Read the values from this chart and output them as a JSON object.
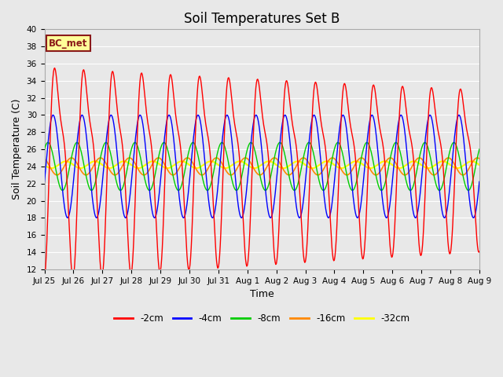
{
  "title": "Soil Temperatures Set B",
  "xlabel": "Time",
  "ylabel": "Soil Temperature (C)",
  "ylim": [
    12,
    40
  ],
  "yticks": [
    12,
    14,
    16,
    18,
    20,
    22,
    24,
    26,
    28,
    30,
    32,
    34,
    36,
    38,
    40
  ],
  "annotation": "BC_met",
  "colors": {
    "-2cm": "#ff0000",
    "-4cm": "#0000ff",
    "-8cm": "#00cc00",
    "-16cm": "#ff8800",
    "-32cm": "#ffff00"
  },
  "legend_labels": [
    "-2cm",
    "-4cm",
    "-8cm",
    "-16cm",
    "-32cm"
  ],
  "x_tick_labels": [
    "Jul 25",
    "Jul 26",
    "Jul 27",
    "Jul 28",
    "Jul 29",
    "Jul 30",
    "Jul 31",
    "Aug 1",
    "Aug 2",
    "Aug 3",
    "Aug 4",
    "Aug 5",
    "Aug 6",
    "Aug 7",
    "Aug 8",
    "Aug 9"
  ],
  "n_days": 15,
  "samples_per_day": 48,
  "mean_all": 24.0,
  "amp_2cm_base": 11.0,
  "amp_2cm_secondary": 3.5,
  "amp_4cm": 6.0,
  "amp_8cm": 2.8,
  "amp_16cm": 1.0,
  "amp_32cm": 0.4,
  "phase_2cm": -1.2,
  "phase_4cm": -0.3,
  "phase_8cm": 0.8,
  "phase_16cm": 2.0,
  "phase_32cm": 3.2,
  "decay_rate": 0.018,
  "background_color": "#e8e8e8",
  "plot_bg_color": "#e8e8e8",
  "grid_color": "#ffffff",
  "title_fontsize": 12,
  "axis_label_fontsize": 9,
  "tick_fontsize": 7.5
}
